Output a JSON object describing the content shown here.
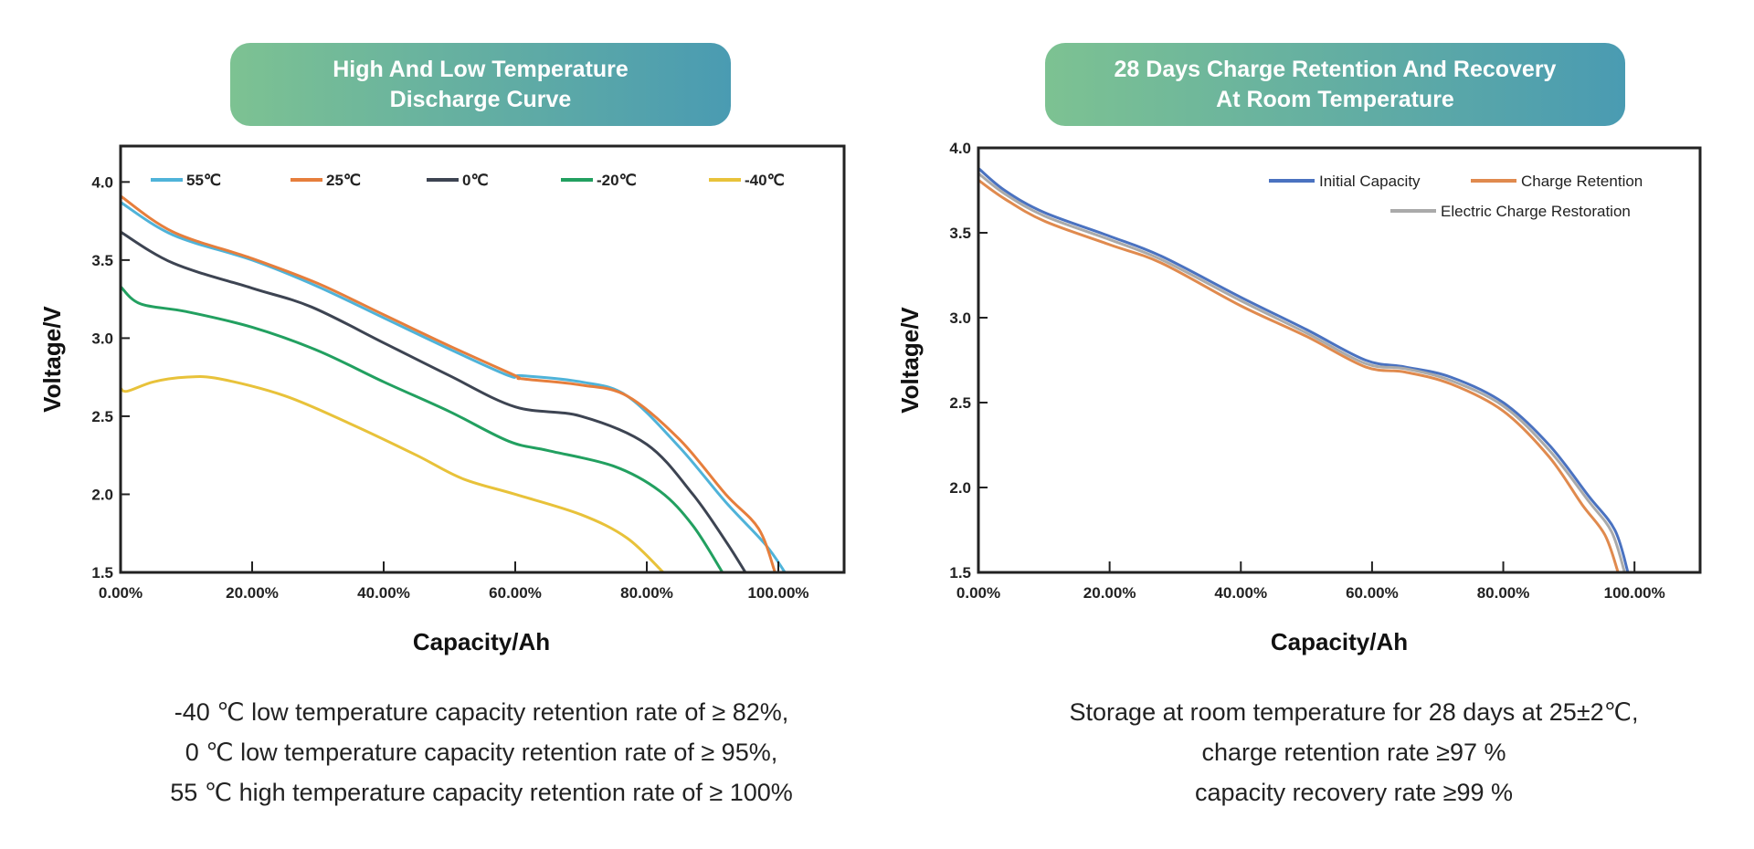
{
  "panels": [
    {
      "title_lines": [
        "High And Low Temperature",
        "Discharge Curve"
      ],
      "caption_lines": [
        "-40 ℃ low temperature capacity retention rate of ≥ 82%,",
        "0 ℃ low temperature capacity retention rate of ≥ 95%,",
        "55 ℃ high temperature capacity retention rate of ≥ 100%"
      ]
    },
    {
      "title_lines": [
        "28 Days Charge Retention And Recovery",
        "At Room Temperature"
      ],
      "caption_lines": [
        "Storage at room temperature for 28 days at 25±2℃,",
        "charge retention rate ≥97 %",
        "capacity recovery rate ≥99 %"
      ]
    }
  ],
  "chart_data": [
    {
      "type": "line",
      "xlabel": "Capacity/Ah",
      "ylabel": "Voltage/V",
      "xlim": [
        0,
        110
      ],
      "ylim": [
        1.5,
        4.23
      ],
      "xticks": [
        "0.00%",
        "20.00%",
        "40.00%",
        "60.00%",
        "80.00%",
        "100.00%"
      ],
      "yticks": [
        "1.5",
        "2.0",
        "2.5",
        "3.0",
        "3.5",
        "4.0"
      ],
      "legend_position": "top",
      "grid": false,
      "series": [
        {
          "name": "55℃",
          "color": "#4fb3d9",
          "points": [
            [
              0,
              3.87
            ],
            [
              8,
              3.66
            ],
            [
              20,
              3.5
            ],
            [
              30,
              3.33
            ],
            [
              40,
              3.13
            ],
            [
              50,
              2.93
            ],
            [
              59,
              2.76
            ],
            [
              61,
              2.76
            ],
            [
              70,
              2.72
            ],
            [
              77,
              2.63
            ],
            [
              85,
              2.3
            ],
            [
              92,
              1.95
            ],
            [
              98,
              1.68
            ],
            [
              101,
              1.5
            ]
          ]
        },
        {
          "name": "25℃",
          "color": "#e67e3c",
          "points": [
            [
              0,
              3.91
            ],
            [
              8,
              3.68
            ],
            [
              20,
              3.51
            ],
            [
              30,
              3.35
            ],
            [
              40,
              3.15
            ],
            [
              50,
              2.95
            ],
            [
              60,
              2.76
            ],
            [
              61,
              2.74
            ],
            [
              70,
              2.7
            ],
            [
              77,
              2.63
            ],
            [
              85,
              2.35
            ],
            [
              92,
              2.0
            ],
            [
              97,
              1.78
            ],
            [
              99.5,
              1.5
            ]
          ]
        },
        {
          "name": "0℃",
          "color": "#3d4452",
          "points": [
            [
              0,
              3.68
            ],
            [
              8,
              3.48
            ],
            [
              20,
              3.32
            ],
            [
              29,
              3.2
            ],
            [
              40,
              2.97
            ],
            [
              50,
              2.76
            ],
            [
              60,
              2.56
            ],
            [
              70,
              2.5
            ],
            [
              80,
              2.32
            ],
            [
              87,
              2.0
            ],
            [
              92,
              1.7
            ],
            [
              95,
              1.5
            ]
          ]
        },
        {
          "name": "-20℃",
          "color": "#22a060",
          "points": [
            [
              0,
              3.33
            ],
            [
              3,
              3.22
            ],
            [
              10,
              3.17
            ],
            [
              20,
              3.07
            ],
            [
              30,
              2.92
            ],
            [
              40,
              2.72
            ],
            [
              50,
              2.53
            ],
            [
              59,
              2.34
            ],
            [
              65,
              2.28
            ],
            [
              75,
              2.18
            ],
            [
              82,
              2.02
            ],
            [
              87,
              1.8
            ],
            [
              91.5,
              1.5
            ]
          ]
        },
        {
          "name": "-40℃",
          "color": "#e8c23a",
          "points": [
            [
              0,
              2.68
            ],
            [
              1,
              2.66
            ],
            [
              5,
              2.72
            ],
            [
              10,
              2.75
            ],
            [
              15,
              2.74
            ],
            [
              25,
              2.63
            ],
            [
              35,
              2.45
            ],
            [
              45,
              2.25
            ],
            [
              52,
              2.1
            ],
            [
              60,
              2.0
            ],
            [
              70,
              1.87
            ],
            [
              77,
              1.72
            ],
            [
              82.5,
              1.5
            ]
          ]
        }
      ]
    },
    {
      "type": "line",
      "xlabel": "Capacity/Ah",
      "ylabel": "Voltage/V",
      "xlim": [
        0,
        110
      ],
      "ylim": [
        1.5,
        4.0
      ],
      "xticks": [
        "0.00%",
        "20.00%",
        "40.00%",
        "60.00%",
        "80.00%",
        "100.00%"
      ],
      "yticks": [
        "1.5",
        "2.0",
        "2.5",
        "3.0",
        "3.5",
        "4.0"
      ],
      "legend_position": "top-right",
      "grid": false,
      "series": [
        {
          "name": "Initial Capacity",
          "color": "#4a72c0",
          "points": [
            [
              0,
              3.88
            ],
            [
              4,
              3.75
            ],
            [
              10,
              3.62
            ],
            [
              20,
              3.48
            ],
            [
              28,
              3.36
            ],
            [
              40,
              3.12
            ],
            [
              50,
              2.93
            ],
            [
              59,
              2.75
            ],
            [
              65,
              2.71
            ],
            [
              72,
              2.65
            ],
            [
              80,
              2.5
            ],
            [
              87,
              2.25
            ],
            [
              93,
              1.95
            ],
            [
              97,
              1.75
            ],
            [
              99,
              1.5
            ]
          ]
        },
        {
          "name": "Charge Retention",
          "color": "#e08a4e",
          "points": [
            [
              0,
              3.81
            ],
            [
              4,
              3.7
            ],
            [
              10,
              3.57
            ],
            [
              20,
              3.43
            ],
            [
              28,
              3.32
            ],
            [
              40,
              3.07
            ],
            [
              50,
              2.89
            ],
            [
              59,
              2.71
            ],
            [
              65,
              2.68
            ],
            [
              72,
              2.61
            ],
            [
              80,
              2.45
            ],
            [
              87,
              2.18
            ],
            [
              92,
              1.9
            ],
            [
              95.5,
              1.72
            ],
            [
              97.5,
              1.5
            ]
          ]
        },
        {
          "name": "Electric Charge Restoration",
          "color": "#aaaaaa",
          "points": [
            [
              0,
              3.85
            ],
            [
              4,
              3.73
            ],
            [
              10,
              3.6
            ],
            [
              20,
              3.46
            ],
            [
              28,
              3.34
            ],
            [
              40,
              3.1
            ],
            [
              50,
              2.91
            ],
            [
              59,
              2.73
            ],
            [
              65,
              2.7
            ],
            [
              72,
              2.63
            ],
            [
              80,
              2.48
            ],
            [
              87,
              2.22
            ],
            [
              93,
              1.92
            ],
            [
              96.5,
              1.74
            ],
            [
              98.5,
              1.5
            ]
          ]
        }
      ]
    }
  ]
}
